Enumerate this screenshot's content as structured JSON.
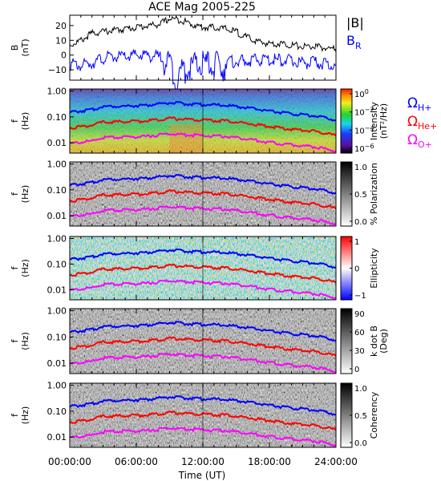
{
  "title": "ACE Mag 2005-225",
  "xlabel": "Time (UT)",
  "x_ticks": [
    "00:00:00",
    "06:00:00",
    "12:00:00",
    "18:00:00",
    "24:00:00"
  ],
  "colors": {
    "B_total": "#000000",
    "B_R": "#0000ff",
    "H_plus": "#0000ff",
    "He_plus": "#ff0000",
    "O_plus": "#ff00ff"
  },
  "panels": [
    {
      "id": "field",
      "ylabel": "B",
      "yunit": "(nT)",
      "yticks": [
        "20",
        "10",
        "0",
        "−10"
      ],
      "legend": [
        {
          "label": "|B|",
          "color": "#000000"
        },
        {
          "label": "B",
          "sub": "R",
          "color": "#0000ff"
        }
      ]
    },
    {
      "id": "intensity",
      "ylabel": "f",
      "yunit": "(Hz)",
      "yticks": [
        "1.00",
        "0.10",
        "0.01"
      ],
      "colorbar_label": "Intensity",
      "colorbar_unit": "(nT²/Hz)",
      "colorbar_ticks": [
        {
          "base": "10",
          "exp": "0"
        },
        {
          "base": "10",
          "exp": "−2"
        },
        {
          "base": "10",
          "exp": "−4"
        },
        {
          "base": "10",
          "exp": "−6"
        }
      ],
      "legend": [
        {
          "symbol": "Ω",
          "sub": "H+",
          "color": "#0000ff"
        },
        {
          "symbol": "Ω",
          "sub": "He+",
          "color": "#ff0000"
        },
        {
          "symbol": "Ω",
          "sub": "O+",
          "color": "#ff00ff"
        }
      ]
    },
    {
      "id": "polarization",
      "ylabel": "f",
      "yunit": "(Hz)",
      "yticks": [
        "1.00",
        "0.10",
        "0.01"
      ],
      "colorbar_label": "% Polarization",
      "colorbar_ticks": [
        "1.0",
        "0.5",
        "0.0"
      ]
    },
    {
      "id": "ellipticity",
      "ylabel": "f",
      "yunit": "(Hz)",
      "yticks": [
        "1.00",
        "0.10",
        "0.01"
      ],
      "colorbar_label": "Ellipticity",
      "colorbar_ticks": [
        "1",
        "0",
        "−1"
      ]
    },
    {
      "id": "kdotb",
      "ylabel": "f",
      "yunit": "(Hz)",
      "yticks": [
        "1.00",
        "0.10",
        "0.01"
      ],
      "colorbar_label": "k dot B",
      "colorbar_unit": "(Deg)",
      "colorbar_ticks": [
        "90",
        "60",
        "30",
        "0"
      ]
    },
    {
      "id": "coherency",
      "ylabel": "f",
      "yunit": "(Hz)",
      "yticks": [
        "1.00",
        "0.10",
        "0.01"
      ],
      "colorbar_label": "Coherency",
      "colorbar_ticks": [
        "1.0",
        "0.5",
        "0.0"
      ]
    }
  ],
  "chart_data": [
    {
      "type": "line",
      "title": "ACE Mag 2005-225",
      "ylabel": "B (nT)",
      "xlim": [
        0,
        24
      ],
      "ylim": [
        -17,
        27
      ],
      "series": [
        {
          "name": "|B|",
          "x": [
            0,
            1,
            2,
            3,
            4,
            5,
            6,
            7,
            8,
            8.6,
            9,
            10,
            11,
            12,
            13,
            14,
            15,
            16,
            17,
            18,
            19,
            20,
            21,
            22,
            23,
            24
          ],
          "y": [
            8,
            11,
            16,
            17,
            18,
            19,
            20,
            21,
            22,
            24,
            26,
            25,
            22,
            20,
            20,
            19,
            17,
            13,
            10,
            9,
            9,
            8,
            7,
            7,
            6,
            5
          ]
        },
        {
          "name": "B_R",
          "x": [
            0,
            1,
            2,
            3,
            4,
            5,
            6,
            7,
            8,
            9,
            9.7,
            10,
            11,
            12,
            13,
            14,
            15,
            16,
            17,
            18,
            19,
            20,
            21,
            22,
            23,
            24
          ],
          "y": [
            -4,
            -5,
            -3,
            0,
            1,
            1,
            2,
            2,
            1,
            0,
            -13,
            -6,
            -3,
            -1,
            -2,
            -3,
            -2,
            -2,
            -1,
            -1,
            -1,
            -2,
            -3,
            -3,
            -4,
            -5
          ]
        }
      ]
    },
    {
      "type": "line",
      "ylabel": "f (Hz)",
      "yscale": "log",
      "xlim": [
        0,
        24
      ],
      "ylim": [
        0.004,
        1.2
      ],
      "series": [
        {
          "name": "ΩH+",
          "x": [
            0,
            2,
            3,
            5,
            7,
            9,
            10,
            12,
            14,
            16,
            18,
            20,
            22,
            24
          ],
          "y": [
            0.16,
            0.2,
            0.27,
            0.28,
            0.3,
            0.38,
            0.35,
            0.32,
            0.3,
            0.24,
            0.18,
            0.14,
            0.12,
            0.08
          ]
        },
        {
          "name": "ΩHe+",
          "x": [
            0,
            2,
            3,
            5,
            7,
            9,
            10,
            12,
            14,
            16,
            18,
            20,
            22,
            24
          ],
          "y": [
            0.04,
            0.05,
            0.067,
            0.07,
            0.075,
            0.095,
            0.088,
            0.08,
            0.075,
            0.06,
            0.045,
            0.035,
            0.03,
            0.02
          ]
        },
        {
          "name": "ΩO+",
          "x": [
            0,
            2,
            3,
            5,
            7,
            9,
            10,
            12,
            14,
            16,
            18,
            20,
            22,
            24
          ],
          "y": [
            0.01,
            0.0125,
            0.017,
            0.0175,
            0.019,
            0.024,
            0.022,
            0.02,
            0.019,
            0.015,
            0.011,
            0.009,
            0.0075,
            0.005
          ]
        }
      ]
    }
  ]
}
